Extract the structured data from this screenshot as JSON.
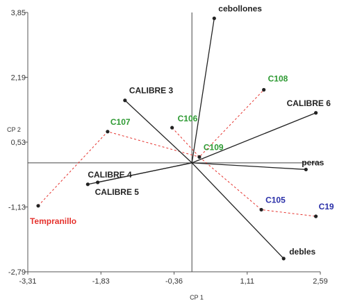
{
  "chart_data": {
    "type": "scatter",
    "title": "",
    "xlabel": "CP 1",
    "ylabel": "CP 2",
    "xlim": [
      -3.31,
      2.59
    ],
    "ylim": [
      -2.79,
      3.85
    ],
    "xticks": [
      "-3,31",
      "-1,83",
      "-0,36",
      "1,11",
      "2,59"
    ],
    "yticks": [
      "3,85",
      "2,19",
      "0,53",
      "-1,13",
      "-2,79"
    ],
    "colors": {
      "variable": "#222222",
      "trajectory": "#e5322d",
      "green_label": "#2e9a33",
      "blue_label": "#2a2fa8",
      "red_label": "#e5322d"
    },
    "vectors": [
      {
        "name": "cebollones",
        "x": 0.45,
        "y": 3.7
      },
      {
        "name": "CALIBRE 3",
        "x": -1.35,
        "y": 1.6
      },
      {
        "name": "CALIBRE 6",
        "x": 2.5,
        "y": 1.28
      },
      {
        "name": "peras",
        "x": 2.3,
        "y": -0.17
      },
      {
        "name": "CALIBRE 4",
        "x": -2.1,
        "y": -0.55
      },
      {
        "name": "CALIBRE 5",
        "x": -1.9,
        "y": -0.5
      },
      {
        "name": "debles",
        "x": 1.85,
        "y": -2.45
      }
    ],
    "observations": [
      {
        "name": "Tempranillo",
        "x": -3.1,
        "y": -1.1,
        "label_color": "red"
      },
      {
        "name": "C107",
        "x": -1.7,
        "y": 0.8,
        "label_color": "green"
      },
      {
        "name": "C106",
        "x": -0.4,
        "y": 0.9,
        "label_color": "green"
      },
      {
        "name": "C108",
        "x": 1.45,
        "y": 1.87,
        "label_color": "green"
      },
      {
        "name": "C109",
        "x": 0.15,
        "y": 0.15,
        "label_color": "green"
      },
      {
        "name": "C105",
        "x": 1.4,
        "y": -1.2,
        "label_color": "blue"
      },
      {
        "name": "C19",
        "x": 2.5,
        "y": -1.37,
        "label_color": "blue"
      }
    ],
    "trajectories": [
      [
        "Tempranillo",
        "C107",
        "C109"
      ],
      [
        "C106",
        "C109",
        "C108"
      ],
      [
        "C109",
        "C105",
        "C19"
      ]
    ]
  }
}
